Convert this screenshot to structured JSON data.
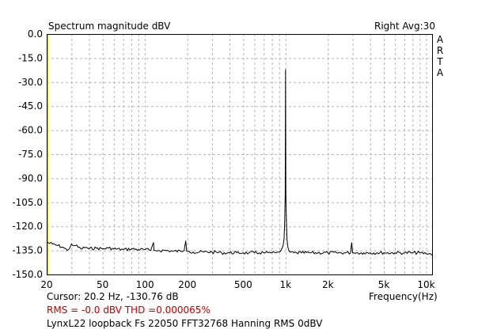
{
  "header": {
    "title": "Spectrum magnitude dBV",
    "channel_info": "Right  Avg:30"
  },
  "brand_vertical": [
    "A",
    "R",
    "T",
    "A"
  ],
  "footer": {
    "cursor": "Cursor:   20.2 Hz, -130.76 dB",
    "xlabel": "Frequency(Hz)",
    "rms_thd": "RMS =  -0.0 dBV    THD =0.000065%",
    "info": "LynxL22 loopback Fs 22050  FFT32768  Hanning RMS 0dBV"
  },
  "colors": {
    "background": "#ffffff",
    "trace": "#000000",
    "grid": "#b4b4b4",
    "cursor_line": "#c8c800",
    "rms_text": "#c00000"
  },
  "chart_data": {
    "type": "line",
    "title": "Spectrum magnitude dBV",
    "xlabel": "Frequency(Hz)",
    "ylabel": "",
    "xscale": "log",
    "xlim": [
      20,
      11025
    ],
    "ylim": [
      -150,
      0
    ],
    "grid": true,
    "x_ticks": [
      20,
      50,
      100,
      200,
      500,
      1000,
      2000,
      5000,
      10000
    ],
    "x_tick_labels": [
      "20",
      "50",
      "100",
      "200",
      "500",
      "1k",
      "2k",
      "5k",
      "10k"
    ],
    "y_ticks": [
      0,
      -15,
      -30,
      -45,
      -60,
      -75,
      -90,
      -105,
      -120,
      -135,
      -150
    ],
    "y_tick_labels": [
      "0.0",
      "-15.0",
      "-30.0",
      "-45.0",
      "-60.0",
      "-75.0",
      "-90.0",
      "-105.0",
      "-120.0",
      "-135.0",
      "-150.0"
    ],
    "cursor_x": 20.2,
    "series": [
      {
        "values_x": [
          20,
          22,
          24,
          26,
          28,
          29,
          30,
          32,
          35,
          38,
          40,
          45,
          50,
          55,
          60,
          70,
          80,
          90,
          100,
          110,
          115,
          116,
          118,
          125,
          140,
          160,
          180,
          190,
          195,
          198,
          205,
          220,
          260,
          300,
          350,
          400,
          450,
          500,
          550,
          600,
          650,
          700,
          750,
          800,
          850,
          880,
          900,
          920,
          940,
          960,
          975,
          985,
          995,
          1000,
          1005,
          1015,
          1025,
          1040,
          1060,
          1080,
          1100,
          1150,
          1200,
          1300,
          1500,
          1700,
          2000,
          2300,
          2600,
          2900,
          2950,
          3000,
          3050,
          3200,
          3600,
          4000,
          4500,
          5000,
          6000,
          7000,
          8000,
          9000,
          10000,
          10500,
          11025
        ],
        "values_y": [
          -130,
          -131,
          -132,
          -133,
          -135,
          -134,
          -131,
          -132,
          -134,
          -133,
          -134,
          -133.5,
          -134,
          -133.5,
          -134,
          -134.5,
          -134,
          -134.5,
          -134.5,
          -135,
          -130,
          -135,
          -135,
          -135,
          -135,
          -135.5,
          -135.5,
          -135,
          -129,
          -135.5,
          -135.5,
          -136,
          -136,
          -136,
          -136.5,
          -136.5,
          -136.5,
          -136.5,
          -136.5,
          -136.5,
          -136.5,
          -136.5,
          -136.5,
          -136.5,
          -136.5,
          -136,
          -136,
          -135.5,
          -134,
          -132,
          -128,
          -118,
          -100,
          -22,
          -100,
          -118,
          -128,
          -133,
          -135.5,
          -136,
          -136,
          -136.5,
          -136.5,
          -136.5,
          -136.5,
          -136.5,
          -136.5,
          -136.5,
          -136.5,
          -136.5,
          -130,
          -136.5,
          -136.5,
          -136.5,
          -136.5,
          -136.5,
          -136.5,
          -136.5,
          -136.5,
          -136.5,
          -136.5,
          -136.5,
          -137,
          -137,
          -138
        ]
      }
    ]
  }
}
